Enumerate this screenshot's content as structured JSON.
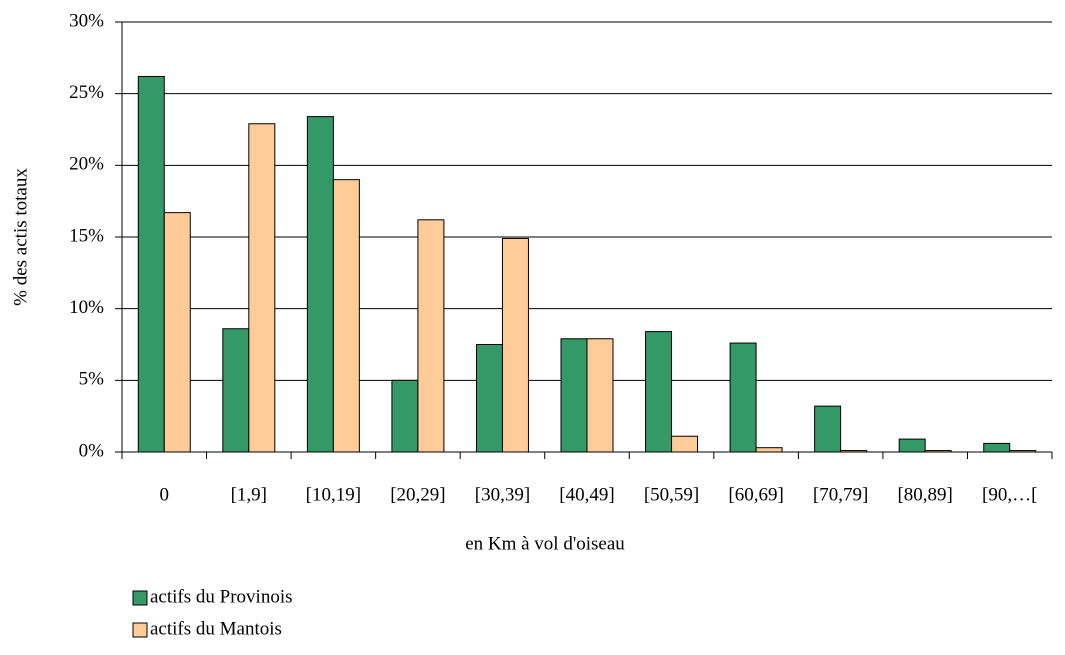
{
  "chart_data": {
    "type": "bar",
    "xlabel": "en Km à vol d'oiseau",
    "ylabel": "% des actis totaux",
    "categories": [
      "0",
      "[1,9]",
      "[10,19]",
      "[20,29]",
      "[30,39]",
      "[40,49]",
      "[50,59]",
      "[60,69]",
      "[70,79]",
      "[80,89]",
      "[90,…["
    ],
    "series": [
      {
        "name": "actifs du Provinois",
        "color": "#339966",
        "values": [
          26.2,
          8.6,
          23.4,
          5.0,
          7.5,
          7.9,
          8.4,
          7.6,
          3.2,
          0.9,
          0.6
        ]
      },
      {
        "name": "actifs du Mantois",
        "color": "#ffcc99",
        "values": [
          16.7,
          22.9,
          19.0,
          16.2,
          14.9,
          7.9,
          1.1,
          0.3,
          0.1,
          0.1,
          0.1
        ]
      }
    ],
    "ylim": [
      0,
      30
    ],
    "yticks": [
      {
        "value": 0,
        "label": "0%"
      },
      {
        "value": 5,
        "label": "5%"
      },
      {
        "value": 10,
        "label": "10%"
      },
      {
        "value": 15,
        "label": "15%"
      },
      {
        "value": 20,
        "label": "20%"
      },
      {
        "value": 25,
        "label": "25%"
      },
      {
        "value": 30,
        "label": "30%"
      }
    ],
    "grid": true,
    "legend": "bottom-left"
  }
}
